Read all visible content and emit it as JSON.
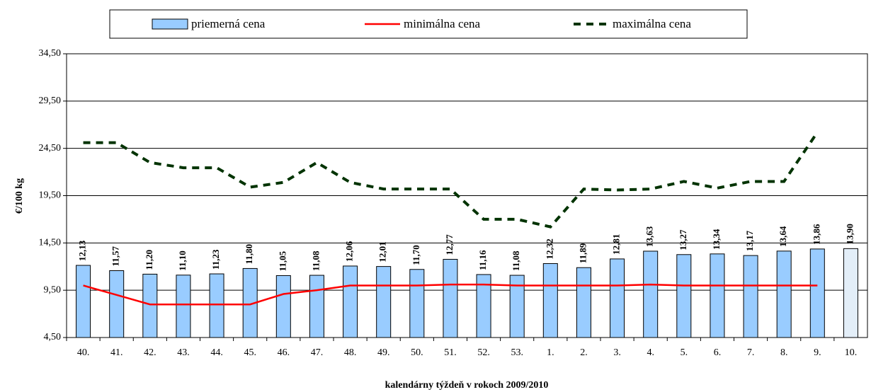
{
  "chart_data": {
    "type": "bar_line",
    "ylabel": "€/100 kg",
    "xlabel": "kalendárny týždeň v rokoch 2009/2010",
    "categories": [
      "40.",
      "41.",
      "42.",
      "43.",
      "44.",
      "45.",
      "46.",
      "47.",
      "48.",
      "49.",
      "50.",
      "51.",
      "52.",
      "53.",
      "1.",
      "2.",
      "3.",
      "4.",
      "5.",
      "6.",
      "7.",
      "8.",
      "9.",
      "10."
    ],
    "ylim": [
      4.5,
      34.5
    ],
    "yticks": [
      {
        "value": 4.5,
        "label": "4,50"
      },
      {
        "value": 9.5,
        "label": "9,50"
      },
      {
        "value": 14.5,
        "label": "14,50"
      },
      {
        "value": 19.5,
        "label": "19,50"
      },
      {
        "value": 24.5,
        "label": "24,50"
      },
      {
        "value": 29.5,
        "label": "29,50"
      },
      {
        "value": 34.5,
        "label": "34,50"
      }
    ],
    "grid": true,
    "series": [
      {
        "name": "priemerná cena",
        "kind": "bar",
        "color": "#99ccff",
        "colors": [
          "#99ccff",
          "#99ccff",
          "#99ccff",
          "#99ccff",
          "#99ccff",
          "#99ccff",
          "#99ccff",
          "#99ccff",
          "#99ccff",
          "#99ccff",
          "#99ccff",
          "#99ccff",
          "#99ccff",
          "#99ccff",
          "#99ccff",
          "#99ccff",
          "#99ccff",
          "#99ccff",
          "#99ccff",
          "#99ccff",
          "#99ccff",
          "#99ccff",
          "#99ccff",
          "#e3eef8"
        ],
        "values": [
          12.13,
          11.57,
          11.2,
          11.1,
          11.23,
          11.8,
          11.05,
          11.08,
          12.06,
          12.01,
          11.7,
          12.77,
          11.16,
          11.08,
          12.32,
          11.89,
          12.81,
          13.63,
          13.27,
          13.34,
          13.17,
          13.64,
          13.86,
          13.9
        ],
        "value_labels": [
          "12,13",
          "11,57",
          "11,20",
          "11,10",
          "11,23",
          "11,80",
          "11,05",
          "11,08",
          "12,06",
          "12,01",
          "11,70",
          "12,77",
          "11,16",
          "11,08",
          "12,32",
          "11,89",
          "12,81",
          "13,63",
          "13,27",
          "13,34",
          "13,17",
          "13,64",
          "13,86",
          "13,90"
        ]
      },
      {
        "name": "minimálna cena",
        "kind": "line",
        "color": "#ff0000",
        "values": [
          10.0,
          9.0,
          8.0,
          8.0,
          8.0,
          8.0,
          9.1,
          9.5,
          10.0,
          10.0,
          10.0,
          10.1,
          10.1,
          10.0,
          10.0,
          10.0,
          10.0,
          10.1,
          10.0,
          10.0,
          10.0,
          10.0,
          10.0,
          null
        ]
      },
      {
        "name": "maximálna cena",
        "kind": "dashed",
        "color": "#003300",
        "values": [
          25.1,
          25.1,
          23.0,
          22.45,
          22.45,
          20.4,
          20.9,
          23.0,
          20.9,
          20.2,
          20.2,
          20.2,
          17.0,
          17.0,
          16.2,
          20.2,
          20.1,
          20.2,
          21.0,
          20.3,
          21.0,
          21.0,
          26.2,
          null
        ]
      }
    ]
  }
}
